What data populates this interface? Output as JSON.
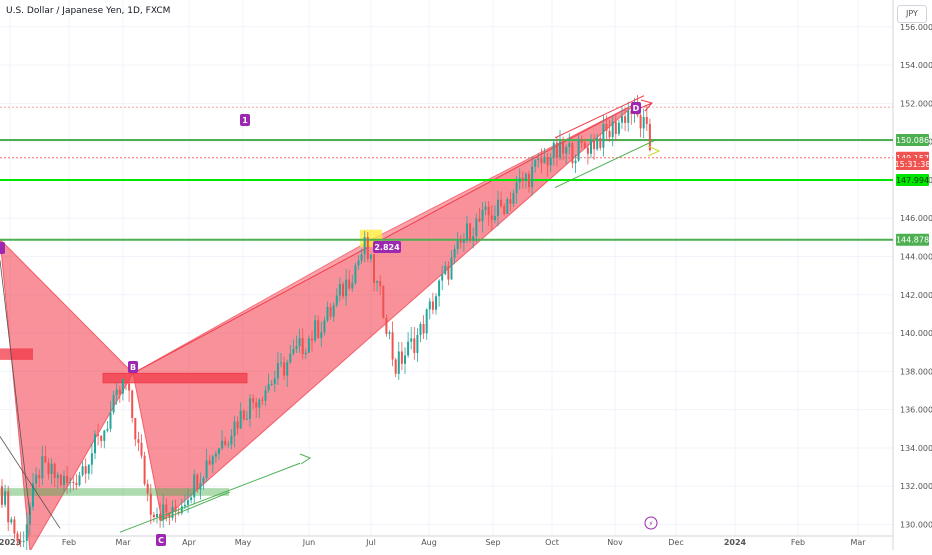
{
  "chart_data": {
    "type": "candlestick",
    "title": "U.S. Dollar / Japanese Yen, 1D, FXCM",
    "currency": "JPY",
    "x_labels": [
      "2023",
      "Feb",
      "Mar",
      "Apr",
      "May",
      "Jun",
      "Jul",
      "Aug",
      "Sep",
      "Oct",
      "Nov",
      "Dec",
      "2024",
      "Feb",
      "Mar"
    ],
    "y_ticks": [
      130.0,
      132.0,
      134.0,
      136.0,
      138.0,
      140.0,
      142.0,
      144.0,
      146.0,
      148.0,
      150.0,
      152.0,
      154.0,
      156.0
    ],
    "y_tick_labels": [
      "130.000",
      "132.000",
      "134.000",
      "136.000",
      "138.000",
      "140.000",
      "142.000",
      "144.000",
      "146.000",
      "148.000",
      "150.000",
      "152.000",
      "154.000",
      "156.000"
    ],
    "ylim": [
      129.4,
      157.4
    ],
    "grid": true,
    "price_labels": [
      {
        "text": "150.086",
        "value": 150.086,
        "color": "#4caf50"
      },
      {
        "text": "149.157",
        "value": 149.157,
        "color": "#ef5350"
      },
      {
        "text": "15:31:38",
        "value": 148.83,
        "color": "#ef5350"
      },
      {
        "text": "147.994",
        "value": 147.994,
        "color": "#00e600"
      },
      {
        "text": "144.878",
        "value": 144.878,
        "color": "#4caf50"
      }
    ],
    "horizontal_lines": [
      {
        "value": 150.086,
        "color": "#4caf50"
      },
      {
        "value": 147.994,
        "color": "#00e600"
      },
      {
        "value": 144.878,
        "color": "#4caf50"
      }
    ],
    "annotations": {
      "pattern_points": [
        "B",
        "C",
        "D",
        "1"
      ],
      "ratio_label": "2.824"
    },
    "colors": {
      "up": "#26a69a",
      "down": "#ef5350",
      "pattern": "#f23645",
      "accent": "#9c27b0"
    }
  }
}
